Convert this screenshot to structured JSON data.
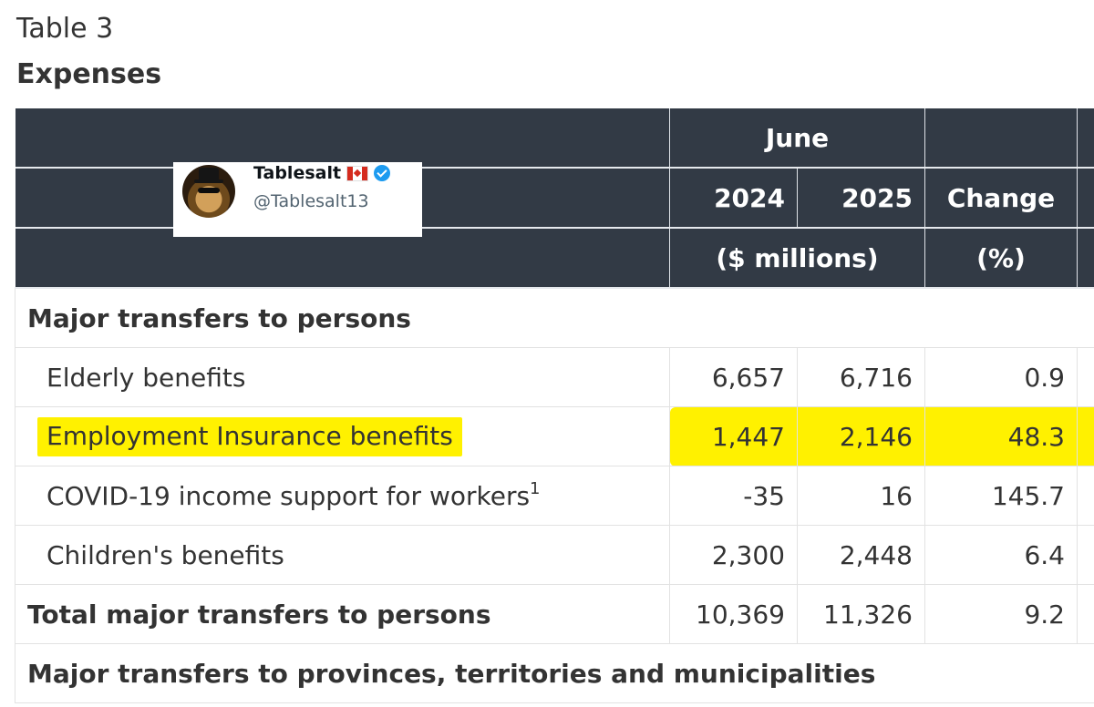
{
  "table": {
    "label": "Table 3",
    "title": "Expenses",
    "header": {
      "period": "June",
      "year1": "2024",
      "year2": "2025",
      "change": "Change",
      "unit_values": "($ millions)",
      "unit_change": "(%)"
    },
    "rows": {
      "section1": "Major transfers to persons",
      "elderly": {
        "label": "Elderly benefits",
        "v2024": "6,657",
        "v2025": "6,716",
        "change": "0.9"
      },
      "ei": {
        "label": "Employment Insurance benefits",
        "v2024": "1,447",
        "v2025": "2,146",
        "change": "48.3"
      },
      "covid": {
        "label": "COVID-19 income support for workers",
        "footnote": "1",
        "v2024": "-35",
        "v2025": "16",
        "change": "145.7"
      },
      "children": {
        "label": "Children's benefits",
        "v2024": "2,300",
        "v2025": "2,448",
        "change": "6.4"
      },
      "total": {
        "label": "Total major transfers to persons",
        "v2024": "10,369",
        "v2025": "11,326",
        "change": "9.2"
      },
      "section2": "Major transfers to provinces, territories and municipalities"
    }
  },
  "overlay": {
    "name": "Tablesalt",
    "handle": "@Tablesalt13",
    "flag_icon": "canada-flag-icon",
    "badge_icon": "verified-badge-icon",
    "badge_color": "#1d9bf0"
  },
  "highlight_color": "#fff100"
}
